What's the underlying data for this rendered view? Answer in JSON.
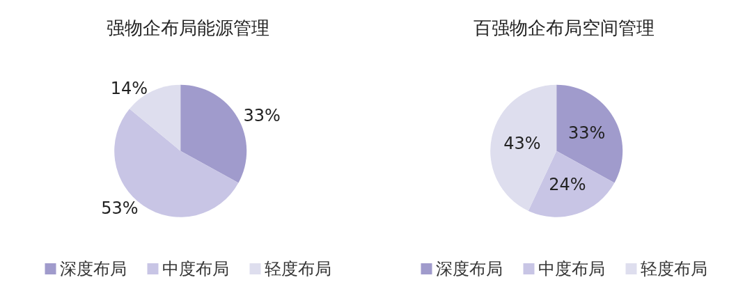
{
  "chart_data": [
    {
      "type": "pie",
      "title": "强物企布局能源管理",
      "categories": [
        "深度布局",
        "中度布局",
        "轻度布局"
      ],
      "values": [
        33,
        53,
        14
      ],
      "value_labels": [
        "33%",
        "53%",
        "14%"
      ],
      "colors": [
        "#a09bcc",
        "#c8c5e5",
        "#dedeee"
      ],
      "legend": "bottom"
    },
    {
      "type": "pie",
      "title": "百强物企布局空间管理",
      "categories": [
        "深度布局",
        "中度布局",
        "轻度布局"
      ],
      "values": [
        33,
        24,
        43
      ],
      "value_labels": [
        "33%",
        "24%",
        "43%"
      ],
      "colors": [
        "#a09bcc",
        "#c8c5e5",
        "#dedeee"
      ],
      "legend": "bottom"
    }
  ]
}
